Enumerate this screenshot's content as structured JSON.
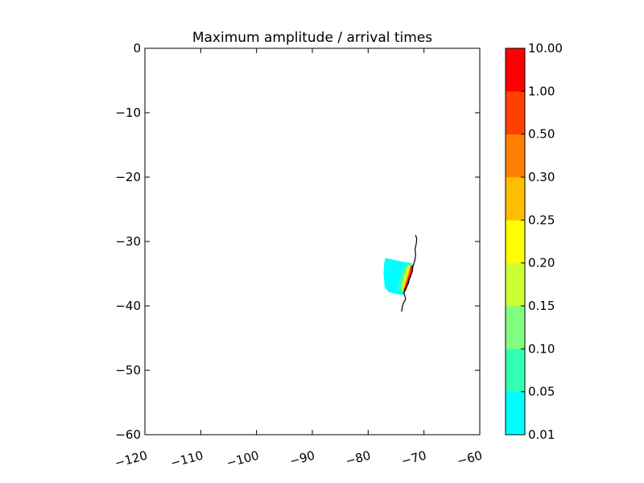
{
  "chart_data": {
    "type": "heatmap",
    "title": "Maximum amplitude / arrival times",
    "xlabel": "",
    "ylabel": "",
    "xlim": [
      -120,
      -60
    ],
    "ylim": [
      -60,
      0
    ],
    "x_ticks": [
      -120,
      -110,
      -100,
      -90,
      -80,
      -70,
      -60
    ],
    "y_ticks": [
      0,
      -10,
      -20,
      -30,
      -40,
      -50,
      -60
    ],
    "x_tick_labels": [
      "−120",
      "−110",
      "−100",
      "−90",
      "−80",
      "−70",
      "−60"
    ],
    "y_tick_labels": [
      "0",
      "−10",
      "−20",
      "−30",
      "−40",
      "−50",
      "−60"
    ],
    "grid": false,
    "colorbar": {
      "levels": [
        "0.01",
        "0.05",
        "0.10",
        "0.15",
        "0.20",
        "0.25",
        "0.30",
        "0.50",
        "1.00",
        "10.00"
      ],
      "colors": [
        "#00ffff",
        "#33ffb3",
        "#80ff80",
        "#ccff33",
        "#ffff00",
        "#ffbf00",
        "#ff8000",
        "#ff4000",
        "#ff0000"
      ]
    },
    "bands": [
      {
        "level": "0.01",
        "color": "#00ffff",
        "polygon": [
          [
            -76.9,
            -32.6
          ],
          [
            -75.3,
            -32.9
          ],
          [
            -73.6,
            -33.2
          ],
          [
            -72.2,
            -33.4
          ],
          [
            -72.0,
            -34.5
          ],
          [
            -72.4,
            -35.5
          ],
          [
            -72.8,
            -36.5
          ],
          [
            -73.2,
            -37.5
          ],
          [
            -73.7,
            -38.3
          ],
          [
            -75.0,
            -38.1
          ],
          [
            -76.4,
            -37.8
          ],
          [
            -77.0,
            -37.0
          ],
          [
            -77.2,
            -35.0
          ],
          [
            -77.1,
            -33.5
          ]
        ]
      },
      {
        "level": "0.05",
        "color": "#33ffb3",
        "polygon": [
          [
            -73.4,
            -33.6
          ],
          [
            -72.1,
            -33.5
          ],
          [
            -72.2,
            -34.5
          ],
          [
            -72.6,
            -35.5
          ],
          [
            -73.0,
            -36.5
          ],
          [
            -73.5,
            -37.6
          ],
          [
            -74.1,
            -38.0
          ],
          [
            -74.6,
            -37.2
          ],
          [
            -74.4,
            -36.2
          ],
          [
            -74.1,
            -35.2
          ],
          [
            -73.9,
            -34.4
          ]
        ]
      },
      {
        "level": "0.10",
        "color": "#80ff80",
        "polygon": [
          [
            -73.0,
            -33.7
          ],
          [
            -72.1,
            -33.6
          ],
          [
            -72.2,
            -34.6
          ],
          [
            -72.6,
            -35.6
          ],
          [
            -73.0,
            -36.6
          ],
          [
            -73.5,
            -37.6
          ],
          [
            -74.0,
            -37.7
          ],
          [
            -74.1,
            -36.8
          ],
          [
            -73.8,
            -35.8
          ],
          [
            -73.5,
            -34.8
          ]
        ]
      },
      {
        "level": "0.15",
        "color": "#ccff33",
        "polygon": [
          [
            -72.8,
            -33.8
          ],
          [
            -72.1,
            -33.7
          ],
          [
            -72.2,
            -34.7
          ],
          [
            -72.6,
            -35.7
          ],
          [
            -73.0,
            -36.7
          ],
          [
            -73.5,
            -37.7
          ],
          [
            -73.9,
            -37.6
          ],
          [
            -73.8,
            -36.7
          ],
          [
            -73.5,
            -35.7
          ],
          [
            -73.2,
            -34.7
          ]
        ]
      },
      {
        "level": "0.20",
        "color": "#ffff00",
        "polygon": [
          [
            -72.6,
            -33.8
          ],
          [
            -72.1,
            -33.7
          ],
          [
            -72.2,
            -34.7
          ],
          [
            -72.6,
            -35.7
          ],
          [
            -73.0,
            -36.7
          ],
          [
            -73.4,
            -37.8
          ],
          [
            -73.8,
            -37.6
          ],
          [
            -73.6,
            -36.7
          ],
          [
            -73.3,
            -35.7
          ],
          [
            -73.0,
            -34.7
          ]
        ]
      },
      {
        "level": "0.25",
        "color": "#ffbf00",
        "polygon": [
          [
            -72.5,
            -33.8
          ],
          [
            -72.1,
            -33.7
          ],
          [
            -72.2,
            -34.7
          ],
          [
            -72.6,
            -35.7
          ],
          [
            -73.0,
            -36.7
          ],
          [
            -73.4,
            -37.8
          ],
          [
            -73.7,
            -37.5
          ],
          [
            -73.5,
            -36.6
          ],
          [
            -73.1,
            -35.7
          ],
          [
            -72.8,
            -34.7
          ]
        ]
      },
      {
        "level": "0.30",
        "color": "#ff8000",
        "polygon": [
          [
            -72.4,
            -33.8
          ],
          [
            -72.1,
            -33.7
          ],
          [
            -72.2,
            -34.7
          ],
          [
            -72.6,
            -35.7
          ],
          [
            -73.0,
            -36.7
          ],
          [
            -73.4,
            -37.9
          ],
          [
            -73.6,
            -37.5
          ],
          [
            -73.3,
            -36.6
          ],
          [
            -73.0,
            -35.6
          ],
          [
            -72.6,
            -34.7
          ]
        ]
      },
      {
        "level": "0.50",
        "color": "#ff4000",
        "polygon": [
          [
            -72.3,
            -33.8
          ],
          [
            -72.1,
            -33.7
          ],
          [
            -72.2,
            -34.7
          ],
          [
            -72.6,
            -35.7
          ],
          [
            -73.0,
            -36.7
          ],
          [
            -73.4,
            -37.9
          ],
          [
            -73.5,
            -37.4
          ],
          [
            -73.2,
            -36.5
          ],
          [
            -72.8,
            -35.6
          ],
          [
            -72.5,
            -34.7
          ]
        ]
      },
      {
        "level": "1.00",
        "color": "#ff0000",
        "polygon": [
          [
            -72.2,
            -33.8
          ],
          [
            -72.0,
            -33.7
          ],
          [
            -72.1,
            -34.7
          ],
          [
            -72.5,
            -35.7
          ],
          [
            -72.9,
            -36.7
          ],
          [
            -73.3,
            -37.7
          ],
          [
            -73.4,
            -37.4
          ],
          [
            -73.1,
            -36.5
          ],
          [
            -72.7,
            -35.6
          ],
          [
            -72.4,
            -34.7
          ]
        ]
      }
    ],
    "coastline": [
      [
        -71.5,
        -29.0
      ],
      [
        -71.3,
        -29.6
      ],
      [
        -71.4,
        -30.4
      ],
      [
        -71.6,
        -31.2
      ],
      [
        -71.5,
        -32.0
      ],
      [
        -71.6,
        -32.8
      ],
      [
        -71.8,
        -33.4
      ],
      [
        -72.0,
        -34.0
      ],
      [
        -72.1,
        -34.7
      ],
      [
        -72.4,
        -35.4
      ],
      [
        -72.7,
        -36.0
      ],
      [
        -72.8,
        -36.5
      ],
      [
        -73.1,
        -37.0
      ],
      [
        -73.5,
        -37.5
      ],
      [
        -73.6,
        -38.0
      ],
      [
        -73.4,
        -38.5
      ],
      [
        -73.3,
        -39.0
      ],
      [
        -73.7,
        -39.6
      ],
      [
        -73.9,
        -40.2
      ],
      [
        -74.0,
        -40.9
      ]
    ]
  }
}
